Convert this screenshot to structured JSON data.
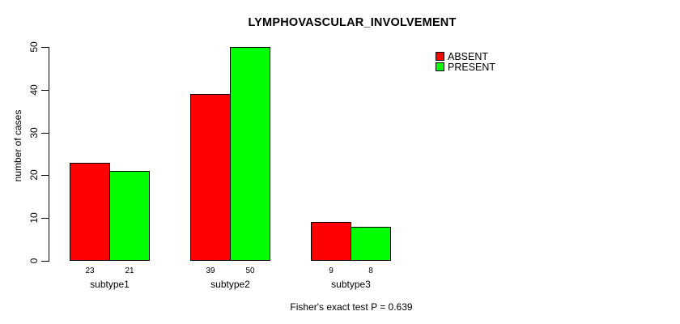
{
  "title": "LYMPHOVASCULAR_INVOLVEMENT",
  "annotation": "Fisher's exact test P = 0.639",
  "chart_data": {
    "type": "bar",
    "title": "LYMPHOVASCULAR_INVOLVEMENT",
    "categories": [
      "subtype1",
      "subtype2",
      "subtype3"
    ],
    "series": [
      {
        "name": "ABSENT",
        "color": "#ff0000",
        "values": [
          23,
          39,
          9
        ]
      },
      {
        "name": "PRESENT",
        "color": "#00ff00",
        "values": [
          21,
          50,
          8
        ]
      }
    ],
    "bar_value_labels": [
      [
        "23",
        "21"
      ],
      [
        "39",
        "50"
      ],
      [
        "9",
        "8"
      ]
    ],
    "xlabel": "",
    "ylabel": "number of cases",
    "ylim": [
      0,
      50
    ],
    "yticks": [
      0,
      10,
      20,
      30,
      40,
      50
    ],
    "grid": false,
    "legend_position": "top-right",
    "annotation": "Fisher's exact test P = 0.639"
  }
}
